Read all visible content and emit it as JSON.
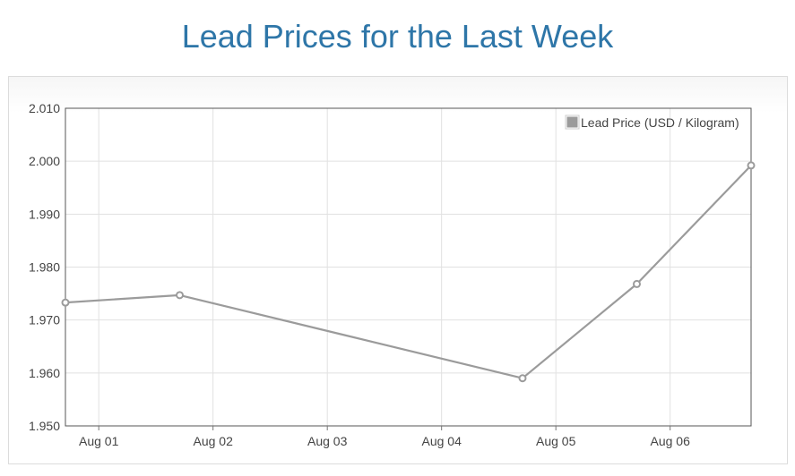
{
  "title": "Lead Prices for the Last Week",
  "chart_data": {
    "type": "line",
    "title": "Lead Prices for the Last Week",
    "xlabel": "",
    "ylabel": "",
    "x_ticks": [
      "Aug 01",
      "Aug 02",
      "Aug 03",
      "Aug 04",
      "Aug 05",
      "Aug 06"
    ],
    "y_ticks": [
      "1.950",
      "1.960",
      "1.970",
      "1.980",
      "1.990",
      "2.000",
      "2.010"
    ],
    "ylim": [
      1.95,
      2.01
    ],
    "xlim": [
      "2024-07-31T17:00",
      "2024-08-06T17:00"
    ],
    "grid": true,
    "legend_position": "top-right",
    "series": [
      {
        "name": "Lead Price (USD / Kilogram)",
        "color": "#9b9b9b",
        "points": [
          {
            "x": "2024-07-31T17:00",
            "y": 1.9733
          },
          {
            "x": "2024-08-01T17:00",
            "y": 1.9747
          },
          {
            "x": "2024-08-04T17:00",
            "y": 1.959
          },
          {
            "x": "2024-08-05T17:00",
            "y": 1.9768
          },
          {
            "x": "2024-08-06T17:00",
            "y": 1.9992
          }
        ]
      }
    ]
  }
}
